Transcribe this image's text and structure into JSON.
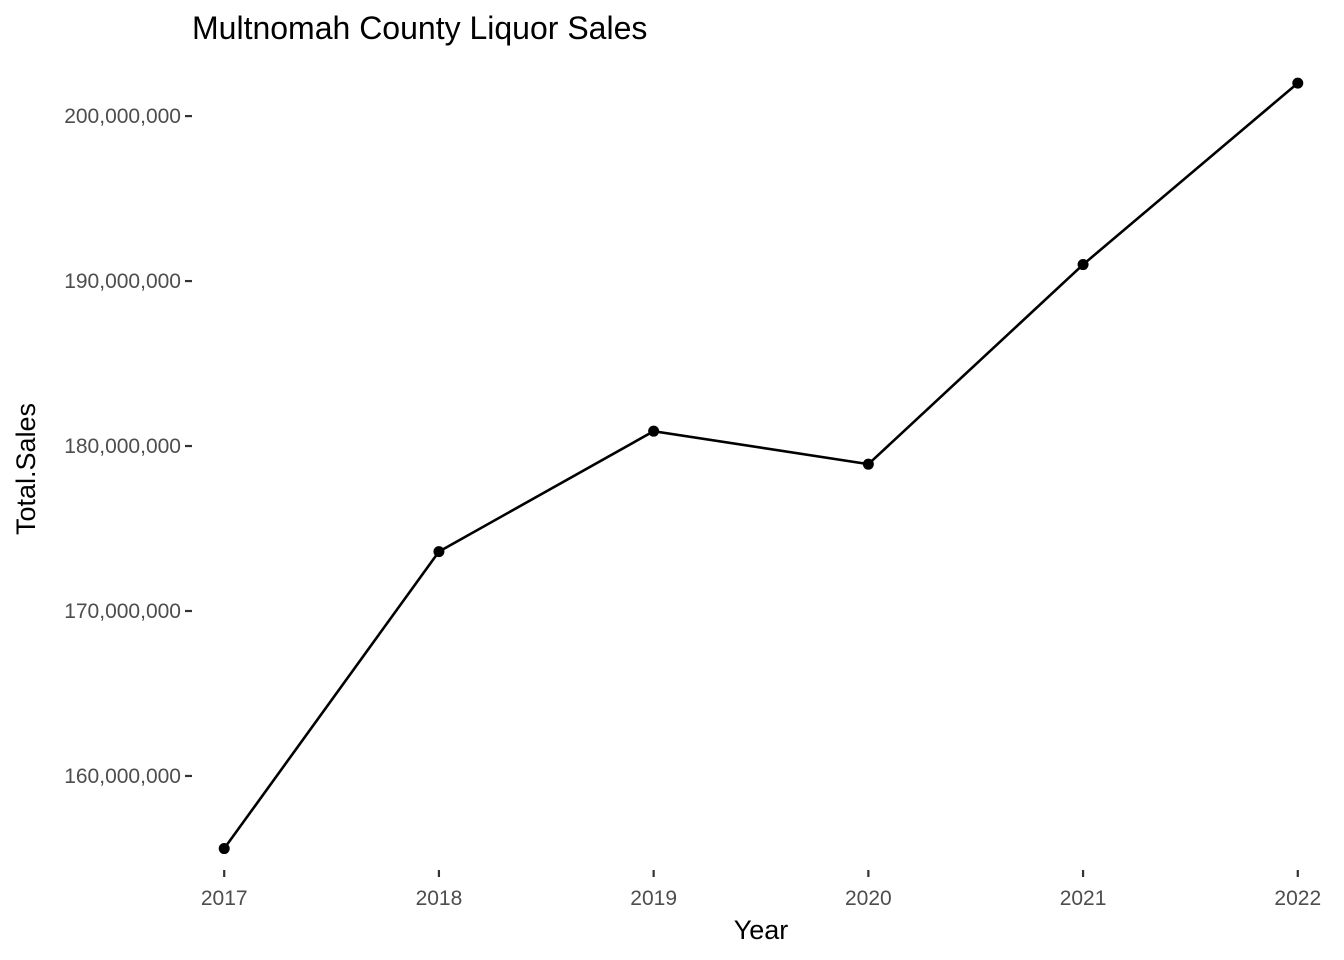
{
  "chart_data": {
    "type": "line",
    "title": "Multnomah County Liquor Sales",
    "xlabel": "Year",
    "ylabel": "Total.Sales",
    "x": [
      2017,
      2018,
      2019,
      2020,
      2021,
      2022
    ],
    "x_tick_labels": [
      "2017",
      "2018",
      "2019",
      "2020",
      "2021",
      "2022"
    ],
    "y_ticks": [
      160000000,
      170000000,
      180000000,
      190000000,
      200000000
    ],
    "y_tick_labels": [
      "160,000,000",
      "170,000,000",
      "180,000,000",
      "190,000,000",
      "200,000,000"
    ],
    "series": [
      {
        "values": [
          155600000,
          173600000,
          180900000,
          178900000,
          191000000,
          202000000
        ]
      }
    ],
    "xlim": [
      2016.85,
      2022.15
    ],
    "ylim": [
      154300000,
      203400000
    ],
    "grid": false,
    "legend": "none",
    "line_color": "#000000",
    "point_color": "#000000"
  }
}
